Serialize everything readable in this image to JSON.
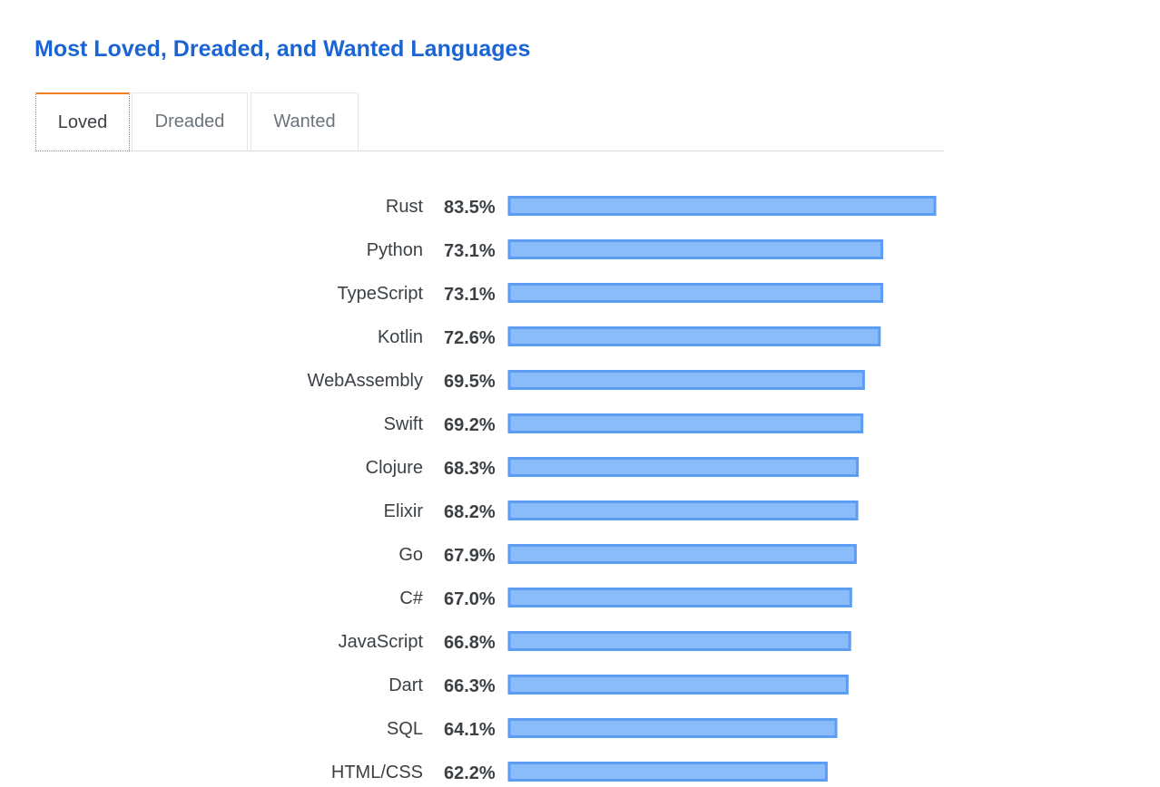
{
  "page": {
    "title": "Most Loved, Dreaded, and Wanted Languages"
  },
  "tabs": [
    {
      "label": "Loved",
      "active": true
    },
    {
      "label": "Dreaded",
      "active": false
    },
    {
      "label": "Wanted",
      "active": false
    }
  ],
  "colors": {
    "title": "#1b64d4",
    "bar_fill": "#8bbcfa",
    "bar_stroke": "#5c9cf2",
    "active_tab_accent": "#f48024"
  },
  "chart_data": {
    "type": "bar",
    "orientation": "horizontal",
    "value_suffix": "%",
    "categories": [
      "Rust",
      "Python",
      "TypeScript",
      "Kotlin",
      "WebAssembly",
      "Swift",
      "Clojure",
      "Elixir",
      "Go",
      "C#",
      "JavaScript",
      "Dart",
      "SQL",
      "HTML/CSS"
    ],
    "values": [
      83.5,
      73.1,
      73.1,
      72.6,
      69.5,
      69.2,
      68.3,
      68.2,
      67.9,
      67.0,
      66.8,
      66.3,
      64.1,
      62.2
    ],
    "value_labels": [
      "83.5%",
      "73.1%",
      "73.1%",
      "72.6%",
      "69.5%",
      "69.2%",
      "68.3%",
      "68.2%",
      "67.9%",
      "67.0%",
      "66.8%",
      "66.3%",
      "64.1%",
      "62.2%"
    ],
    "xlim": [
      0,
      83.5
    ],
    "grid": false,
    "legend": "none"
  }
}
